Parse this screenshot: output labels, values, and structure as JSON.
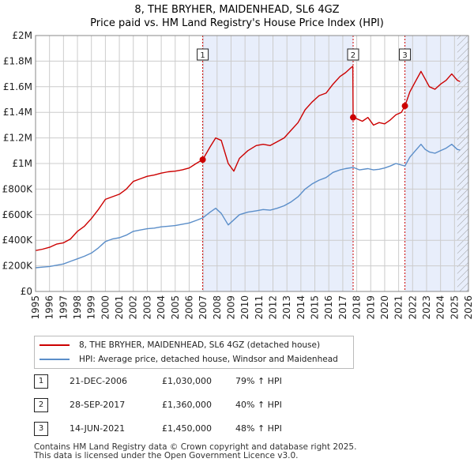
{
  "header": {
    "title_line1": "8, THE BRYHER, MAIDENHEAD, SL6 4GZ",
    "title_line2": "Price paid vs. HM Land Registry's House Price Index (HPI)"
  },
  "colors": {
    "price_line": "#cc0000",
    "hpi_line": "#5b8ec9",
    "shade": "#e8eefb",
    "grid": "#cccccc",
    "marker_vline": "#cc0000"
  },
  "legend": {
    "price_label": "8, THE BRYHER, MAIDENHEAD, SL6 4GZ (detached house)",
    "hpi_label": "HPI: Average price, detached house, Windsor and Maidenhead"
  },
  "transactions": [
    {
      "num": "1",
      "date": "21-DEC-2006",
      "price": "£1,030,000",
      "hpi": "79% ↑ HPI"
    },
    {
      "num": "2",
      "date": "28-SEP-2017",
      "price": "£1,360,000",
      "hpi": "40% ↑ HPI"
    },
    {
      "num": "3",
      "date": "14-JUN-2021",
      "price": "£1,450,000",
      "hpi": "48% ↑ HPI"
    }
  ],
  "footer": {
    "line1": "Contains HM Land Registry data © Crown copyright and database right 2025.",
    "line2": "This data is licensed under the Open Government Licence v3.0."
  },
  "chart_data": {
    "type": "line",
    "title": "8, THE BRYHER, MAIDENHEAD, SL6 4GZ",
    "subtitle": "Price paid vs. HM Land Registry's House Price Index (HPI)",
    "xlim": [
      1995,
      2026
    ],
    "ylim": [
      0,
      2000000
    ],
    "x_ticks": [
      1995,
      1996,
      1997,
      1998,
      1999,
      2000,
      2001,
      2002,
      2003,
      2004,
      2005,
      2006,
      2007,
      2008,
      2009,
      2010,
      2011,
      2012,
      2013,
      2014,
      2015,
      2016,
      2017,
      2018,
      2019,
      2020,
      2021,
      2022,
      2023,
      2024,
      2025,
      2026
    ],
    "y_ticks": [
      {
        "value": 0,
        "label": "£0"
      },
      {
        "value": 200000,
        "label": "£200K"
      },
      {
        "value": 400000,
        "label": "£400K"
      },
      {
        "value": 600000,
        "label": "£600K"
      },
      {
        "value": 800000,
        "label": "£800K"
      },
      {
        "value": 1000000,
        "label": "£1M"
      },
      {
        "value": 1200000,
        "label": "£1.2M"
      },
      {
        "value": 1400000,
        "label": "£1.4M"
      },
      {
        "value": 1600000,
        "label": "£1.6M"
      },
      {
        "value": 1800000,
        "label": "£1.8M"
      },
      {
        "value": 2000000,
        "label": "£2M"
      }
    ],
    "shaded_ranges": [
      [
        2006.97,
        2017.74
      ],
      [
        2021.45,
        2026
      ]
    ],
    "hatched_range": [
      2025.2,
      2026
    ],
    "markers": [
      {
        "label": "1",
        "x": 2006.97,
        "y": 1030000
      },
      {
        "label": "2",
        "x": 2017.74,
        "y": 1360000
      },
      {
        "label": "3",
        "x": 2021.45,
        "y": 1450000
      }
    ],
    "series": [
      {
        "name": "8, THE BRYHER, MAIDENHEAD, SL6 4GZ (detached house)",
        "color": "#cc0000",
        "x": [
          1995,
          1995.5,
          1996,
          1996.5,
          1997,
          1997.5,
          1998,
          1998.5,
          1999,
          1999.5,
          2000,
          2000.5,
          2001,
          2001.5,
          2002,
          2002.5,
          2003,
          2003.5,
          2004,
          2004.5,
          2005,
          2005.5,
          2006,
          2006.5,
          2006.97,
          2007.5,
          2007.9,
          2008.3,
          2008.8,
          2009.2,
          2009.6,
          2010.2,
          2010.8,
          2011.3,
          2011.8,
          2012.3,
          2012.8,
          2013.3,
          2013.8,
          2014.3,
          2014.8,
          2015.3,
          2015.8,
          2016.3,
          2016.8,
          2017.2,
          2017.6,
          2017.72,
          2017.74,
          2018.0,
          2018.4,
          2018.8,
          2019.2,
          2019.6,
          2020.0,
          2020.4,
          2020.8,
          2021.2,
          2021.45,
          2021.8,
          2022.2,
          2022.6,
          2022.9,
          2023.2,
          2023.6,
          2024.0,
          2024.4,
          2024.8,
          2025.2,
          2025.4
        ],
        "y": [
          320000,
          330000,
          345000,
          370000,
          380000,
          410000,
          470000,
          510000,
          570000,
          640000,
          720000,
          740000,
          760000,
          800000,
          860000,
          880000,
          900000,
          910000,
          925000,
          935000,
          940000,
          950000,
          965000,
          1000000,
          1030000,
          1130000,
          1200000,
          1180000,
          1000000,
          940000,
          1040000,
          1100000,
          1140000,
          1150000,
          1140000,
          1170000,
          1200000,
          1260000,
          1320000,
          1420000,
          1480000,
          1530000,
          1550000,
          1620000,
          1680000,
          1710000,
          1750000,
          1760000,
          1360000,
          1350000,
          1330000,
          1360000,
          1300000,
          1320000,
          1310000,
          1340000,
          1380000,
          1400000,
          1450000,
          1560000,
          1640000,
          1720000,
          1660000,
          1600000,
          1580000,
          1620000,
          1650000,
          1700000,
          1650000,
          1640000
        ]
      },
      {
        "name": "HPI: Average price, detached house, Windsor and Maidenhead",
        "color": "#5b8ec9",
        "x": [
          1995,
          1995.5,
          1996,
          1996.5,
          1997,
          1997.5,
          1998,
          1998.5,
          1999,
          1999.5,
          2000,
          2000.5,
          2001,
          2001.5,
          2002,
          2002.5,
          2003,
          2003.5,
          2004,
          2004.5,
          2005,
          2005.5,
          2006,
          2006.5,
          2006.97,
          2007.5,
          2007.9,
          2008.3,
          2008.8,
          2009.2,
          2009.6,
          2010.2,
          2010.8,
          2011.3,
          2011.8,
          2012.3,
          2012.8,
          2013.3,
          2013.8,
          2014.3,
          2014.8,
          2015.3,
          2015.8,
          2016.3,
          2016.8,
          2017.2,
          2017.74,
          2018.2,
          2018.8,
          2019.2,
          2019.6,
          2020.0,
          2020.4,
          2020.8,
          2021.45,
          2021.8,
          2022.2,
          2022.6,
          2022.9,
          2023.2,
          2023.6,
          2024.0,
          2024.4,
          2024.8,
          2025.2,
          2025.4
        ],
        "y": [
          185000,
          190000,
          195000,
          205000,
          215000,
          235000,
          255000,
          275000,
          300000,
          340000,
          390000,
          410000,
          420000,
          440000,
          470000,
          480000,
          490000,
          495000,
          505000,
          510000,
          515000,
          525000,
          535000,
          555000,
          575000,
          620000,
          650000,
          610000,
          520000,
          560000,
          600000,
          620000,
          630000,
          640000,
          635000,
          650000,
          670000,
          700000,
          740000,
          800000,
          840000,
          870000,
          890000,
          930000,
          950000,
          960000,
          970000,
          950000,
          960000,
          950000,
          955000,
          965000,
          980000,
          1000000,
          980000,
          1050000,
          1100000,
          1150000,
          1110000,
          1090000,
          1080000,
          1100000,
          1120000,
          1150000,
          1110000,
          1105000
        ]
      }
    ]
  }
}
